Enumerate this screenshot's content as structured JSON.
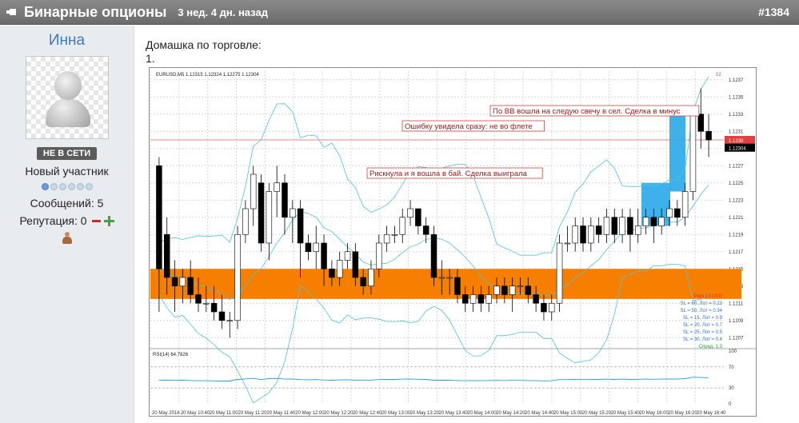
{
  "header": {
    "title": "Бинарные опционы",
    "time": "3 нед. 4 дн. назад",
    "post_number": "#1384"
  },
  "user": {
    "name": "Инна",
    "status": "НЕ В СЕТИ",
    "rank": "Новый участник",
    "rank_level": 1,
    "rank_max": 6,
    "posts": "Сообщений: 5",
    "reputation": "Репутация: 0"
  },
  "post": {
    "line1": "Домашка по торговле:",
    "line2": "1."
  },
  "chart_data": {
    "type": "candlestick",
    "symbol_label": "EURUSD,M5  1.12315 1.12324 1.12275 1.12304",
    "window_index": "02",
    "y_ticks": [
      "1.1237",
      "1.1235",
      "1.1233",
      "1.1231",
      "1.1229",
      "1.1227",
      "1.1225",
      "1.1223",
      "1.1221",
      "1.1219",
      "1.1217",
      "1.1215",
      "1.1213",
      "1.1211",
      "1.1209",
      "1.1207"
    ],
    "price_tag": "1.12304",
    "ask_tag": "1.1230",
    "x_ticks": [
      "20 May 2016",
      "20 May 10:40",
      "20 May 11:00",
      "20 May 11:20",
      "20 May 11:40",
      "20 May 12:00",
      "20 May 12:20",
      "20 May 12:40",
      "20 May 13:00",
      "20 May 13:20",
      "20 May 13:40",
      "20 May 14:00",
      "20 May 14:20",
      "20 May 14:40",
      "20 May 15:00",
      "20 May 15:20",
      "20 May 15:40",
      "20 May 16:00",
      "20 May 16:20",
      "20 May 16:40"
    ],
    "rsi_label": "RSI(14) 64.7826",
    "rsi_ticks": [
      "100",
      "70",
      "30",
      "0"
    ],
    "annotations": [
      "По BB вошла на следую свечу в сел. Сделка в минус",
      "Ошибку увидела сразу: не во флете",
      "Рискнула и я вошла в бай. Сделка выиграла"
    ],
    "right_legend": [
      {
        "text": "Риск 15 USD",
        "color": "#e53030"
      },
      {
        "text": "SL = 60, Лот = 0.23",
        "color": "#2f6fd0"
      },
      {
        "text": "SL = 50, Лот = 0.34",
        "color": "#2f6fd0"
      },
      {
        "text": "SL = 15, Лот = 0.9",
        "color": "#2f6fd0"
      },
      {
        "text": "SL = 20, Лот = 0.7",
        "color": "#2f6fd0"
      },
      {
        "text": "SL = 25, Лот = 0.5",
        "color": "#2f6fd0"
      },
      {
        "text": "SL = 30, Лот = 0.4",
        "color": "#2f6fd0"
      },
      {
        "text": "Спред: 1.3",
        "color": "#2f9a2f"
      }
    ],
    "orange_zone": [
      1.12115,
      1.1215
    ],
    "ask_line": 1.123,
    "ylim": [
      1.1206,
      1.1238
    ],
    "candles": [
      [
        1.1227,
        1.1215,
        1.121,
        1.1228
      ],
      [
        1.1219,
        1.1214,
        1.1212,
        1.1221
      ],
      [
        1.1214,
        1.1213,
        1.121,
        1.1216
      ],
      [
        1.1213,
        1.1214,
        1.1211,
        1.1215
      ],
      [
        1.1214,
        1.1212,
        1.1211,
        1.1216
      ],
      [
        1.1212,
        1.1211,
        1.121,
        1.1214
      ],
      [
        1.1211,
        1.1211,
        1.121,
        1.1213
      ],
      [
        1.1211,
        1.121,
        1.1209,
        1.1213
      ],
      [
        1.121,
        1.1209,
        1.1208,
        1.1212
      ],
      [
        1.1209,
        1.1209,
        1.1207,
        1.121
      ],
      [
        1.1209,
        1.1219,
        1.1208,
        1.122
      ],
      [
        1.1219,
        1.1222,
        1.1218,
        1.1223
      ],
      [
        1.1222,
        1.1226,
        1.122,
        1.1227
      ],
      [
        1.1225,
        1.1218,
        1.1217,
        1.1226
      ],
      [
        1.1218,
        1.1224,
        1.1216,
        1.1225
      ],
      [
        1.1224,
        1.1225,
        1.1221,
        1.1227
      ],
      [
        1.1225,
        1.1221,
        1.1219,
        1.1226
      ],
      [
        1.1221,
        1.1222,
        1.1218,
        1.1223
      ],
      [
        1.1222,
        1.1218,
        1.1214,
        1.1223
      ],
      [
        1.1218,
        1.1217,
        1.1216,
        1.1219
      ],
      [
        1.1217,
        1.1218,
        1.1215,
        1.122
      ],
      [
        1.1218,
        1.1215,
        1.1213,
        1.1219
      ],
      [
        1.1215,
        1.1214,
        1.1213,
        1.1216
      ],
      [
        1.1214,
        1.1216,
        1.1213,
        1.1217
      ],
      [
        1.1216,
        1.1217,
        1.1215,
        1.1218
      ],
      [
        1.1217,
        1.1214,
        1.1213,
        1.1218
      ],
      [
        1.1214,
        1.1213,
        1.1212,
        1.1215
      ],
      [
        1.1213,
        1.1215,
        1.1212,
        1.1216
      ],
      [
        1.1215,
        1.1218,
        1.1214,
        1.1219
      ],
      [
        1.1218,
        1.1219,
        1.1217,
        1.122
      ],
      [
        1.1219,
        1.1219,
        1.1218,
        1.122
      ],
      [
        1.1219,
        1.1221,
        1.1218,
        1.1222
      ],
      [
        1.1221,
        1.1222,
        1.122,
        1.1223
      ],
      [
        1.1222,
        1.122,
        1.1219,
        1.1222
      ],
      [
        1.122,
        1.1219,
        1.1218,
        1.1221
      ],
      [
        1.1219,
        1.1214,
        1.1213,
        1.122
      ],
      [
        1.1214,
        1.1214,
        1.1212,
        1.1216
      ],
      [
        1.1214,
        1.1214,
        1.1212,
        1.1215
      ],
      [
        1.1214,
        1.1212,
        1.1211,
        1.1215
      ],
      [
        1.1212,
        1.1211,
        1.121,
        1.1213
      ],
      [
        1.1211,
        1.1212,
        1.121,
        1.1213
      ],
      [
        1.1212,
        1.1211,
        1.121,
        1.1213
      ],
      [
        1.1211,
        1.1212,
        1.121,
        1.1213
      ],
      [
        1.1212,
        1.1213,
        1.1211,
        1.1214
      ],
      [
        1.1213,
        1.1212,
        1.1211,
        1.1214
      ],
      [
        1.1212,
        1.1213,
        1.121,
        1.1214
      ],
      [
        1.1213,
        1.1213,
        1.1212,
        1.1214
      ],
      [
        1.1213,
        1.1212,
        1.1211,
        1.1214
      ],
      [
        1.1212,
        1.1211,
        1.121,
        1.1213
      ],
      [
        1.1211,
        1.121,
        1.1209,
        1.1212
      ],
      [
        1.121,
        1.1211,
        1.1209,
        1.1212
      ],
      [
        1.1211,
        1.1218,
        1.121,
        1.1219
      ],
      [
        1.1218,
        1.1218,
        1.1217,
        1.122
      ],
      [
        1.1218,
        1.122,
        1.1217,
        1.1221
      ],
      [
        1.122,
        1.1218,
        1.1217,
        1.1221
      ],
      [
        1.1218,
        1.122,
        1.1217,
        1.1221
      ],
      [
        1.122,
        1.1219,
        1.1218,
        1.1221
      ],
      [
        1.1219,
        1.1221,
        1.1218,
        1.1222
      ],
      [
        1.1221,
        1.1219,
        1.1218,
        1.1222
      ],
      [
        1.1219,
        1.1221,
        1.1218,
        1.1222
      ],
      [
        1.1221,
        1.1219,
        1.1217,
        1.1222
      ],
      [
        1.1219,
        1.122,
        1.1218,
        1.1222
      ],
      [
        1.122,
        1.1221,
        1.1219,
        1.1222
      ],
      [
        1.1221,
        1.122,
        1.1218,
        1.1222
      ],
      [
        1.122,
        1.1221,
        1.1219,
        1.1222
      ],
      [
        1.1221,
        1.1222,
        1.122,
        1.1223
      ],
      [
        1.1222,
        1.1221,
        1.122,
        1.1223
      ],
      [
        1.1221,
        1.1224,
        1.122,
        1.1225
      ],
      [
        1.1224,
        1.1233,
        1.1223,
        1.1234
      ],
      [
        1.1233,
        1.1231,
        1.1229,
        1.1236
      ],
      [
        1.1231,
        1.123,
        1.1228,
        1.1233
      ]
    ]
  }
}
